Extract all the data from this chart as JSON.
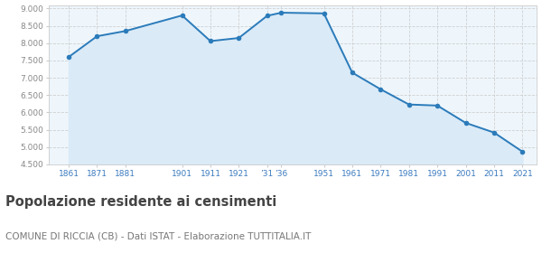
{
  "years": [
    1861,
    1871,
    1881,
    1901,
    1911,
    1921,
    1931,
    1936,
    1951,
    1961,
    1971,
    1981,
    1991,
    2001,
    2011,
    2021
  ],
  "population": [
    7600,
    8200,
    8350,
    8800,
    8060,
    8150,
    8790,
    8880,
    8860,
    7150,
    6670,
    6230,
    6200,
    5700,
    5420,
    4870
  ],
  "tick_years": [
    1861,
    1871,
    1881,
    1901,
    1911,
    1921,
    1931,
    1936,
    1951,
    1961,
    1971,
    1981,
    1991,
    2001,
    2011,
    2021
  ],
  "tick_labels": [
    "1861",
    "1871",
    "1881",
    "1901",
    "1911",
    "1921",
    "’31",
    "’36",
    "1951",
    "1961",
    "1971",
    "1981",
    "1991",
    "2001",
    "2011",
    "2021"
  ],
  "ylim": [
    4500,
    9100
  ],
  "yticks": [
    4500,
    5000,
    5500,
    6000,
    6500,
    7000,
    7500,
    8000,
    8500,
    9000
  ],
  "xlim": [
    1854,
    2026
  ],
  "line_color": "#2b7bba",
  "fill_color": "#daeaf7",
  "marker_color": "#2b7bba",
  "grid_color": "#d0d0d0",
  "bg_color": "#ffffff",
  "plot_bg_color": "#eef6fc",
  "title": "Popolazione residente ai censimenti",
  "subtitle": "COMUNE DI RICCIA (CB) - Dati ISTAT - Elaborazione TUTTITALIA.IT",
  "title_fontsize": 10.5,
  "subtitle_fontsize": 7.5,
  "tick_color": "#3a7abf",
  "ytick_color": "#888888"
}
